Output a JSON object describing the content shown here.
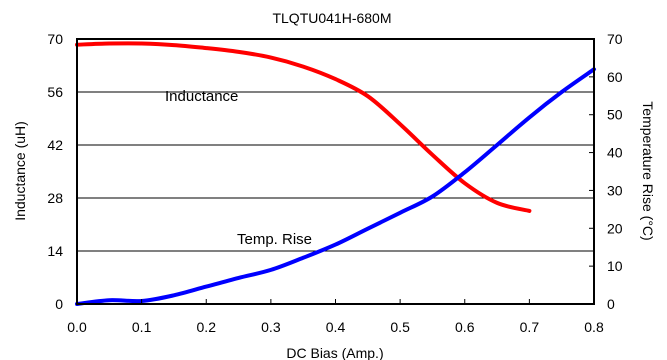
{
  "chart_data": {
    "type": "line",
    "title": "TLQTU041H-680M",
    "xlabel": "DC Bias (Amp.)",
    "ylabel": "Inductance (uH)",
    "y2label": "Temperature Rise (°C)",
    "xlim": [
      0,
      0.8
    ],
    "ylim": [
      0,
      70
    ],
    "y2lim": [
      0,
      70
    ],
    "x_ticks": [
      "0.0",
      "0.1",
      "0.2",
      "0.3",
      "0.4",
      "0.5",
      "0.6",
      "0.7",
      "0.8"
    ],
    "y_ticks": [
      "0",
      "14",
      "28",
      "42",
      "56",
      "70"
    ],
    "y2_ticks": [
      "0",
      "10",
      "20",
      "30",
      "40",
      "50",
      "60",
      "70"
    ],
    "grid": "horizontal at left-axis ticks",
    "series": [
      {
        "name": "Inductance",
        "axis": "left",
        "color": "#ff0000",
        "x": [
          0.0,
          0.05,
          0.1,
          0.15,
          0.2,
          0.25,
          0.3,
          0.35,
          0.4,
          0.45,
          0.5,
          0.55,
          0.6,
          0.65,
          0.7
        ],
        "values": [
          68.5,
          68.8,
          68.8,
          68.4,
          67.6,
          66.6,
          65.1,
          62.7,
          59.4,
          54.9,
          47.5,
          39.4,
          31.9,
          26.7,
          24.6
        ]
      },
      {
        "name": "Temp. Rise",
        "axis": "right",
        "color": "#0000ff",
        "x": [
          0.0,
          0.05,
          0.1,
          0.15,
          0.2,
          0.25,
          0.3,
          0.35,
          0.4,
          0.45,
          0.5,
          0.55,
          0.6,
          0.65,
          0.7,
          0.75,
          0.8
        ],
        "values": [
          0.0,
          1.0,
          0.8,
          2.3,
          4.6,
          6.9,
          9.0,
          12.2,
          15.7,
          19.9,
          24.1,
          28.4,
          34.8,
          42.0,
          49.3,
          56.0,
          62.0
        ]
      }
    ],
    "annotations": [
      "Inductance",
      "Temp. Rise"
    ]
  }
}
